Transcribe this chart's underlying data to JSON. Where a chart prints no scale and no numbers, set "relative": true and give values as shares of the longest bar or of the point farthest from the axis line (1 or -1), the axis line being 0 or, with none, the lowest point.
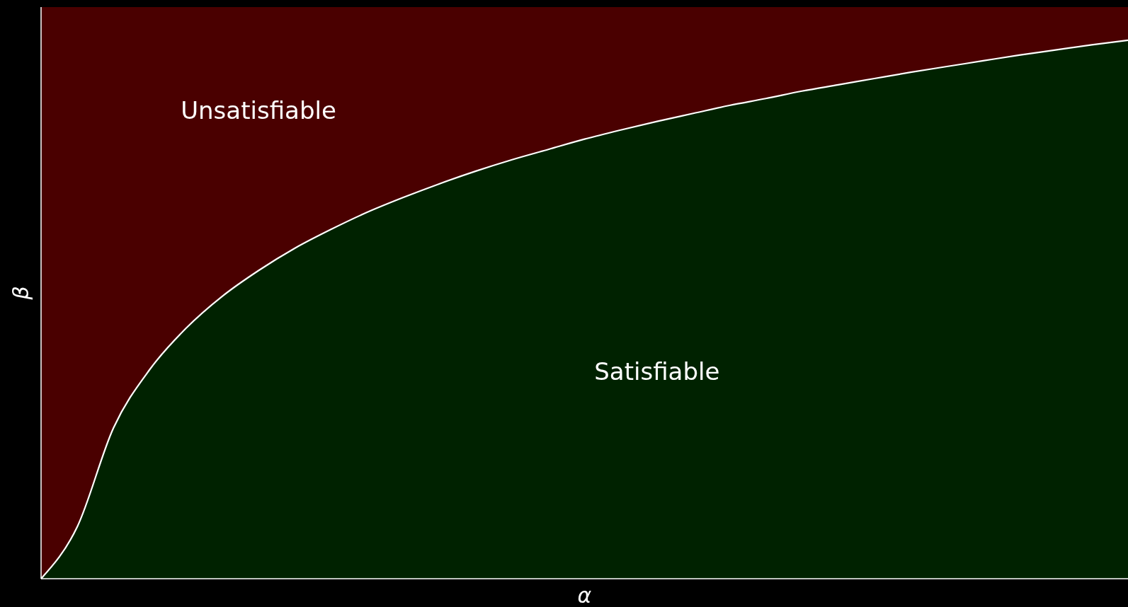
{
  "chart_data": {
    "type": "area",
    "xlabel": "α",
    "ylabel": "β",
    "relative": true,
    "stacked": true,
    "legend": false,
    "categories": [
      null,
      null,
      null,
      null,
      null,
      null,
      null,
      null,
      null,
      null,
      null,
      null,
      null,
      null,
      null,
      null,
      null,
      null,
      null,
      null,
      null,
      null,
      null,
      null,
      null,
      null,
      null,
      null,
      null,
      null,
      null
    ],
    "series": [
      {
        "name": "Satisfiable",
        "color": "#002200",
        "values": [
          0,
          0.091,
          0.264,
          0.366,
          0.438,
          0.494,
          0.539,
          0.578,
          0.611,
          0.641,
          0.667,
          0.691,
          0.713,
          0.733,
          0.751,
          0.769,
          0.785,
          0.8,
          0.814,
          0.828,
          0.84,
          0.853,
          0.864,
          0.875,
          0.886,
          0.896,
          0.906,
          0.916,
          0.925,
          0.934,
          0.942
        ]
      },
      {
        "name": "Unsatisfiable",
        "color": "#4a0000",
        "values": [
          1,
          0.909,
          0.736,
          0.634,
          0.562,
          0.506,
          0.461,
          0.422,
          0.389,
          0.359,
          0.333,
          0.309,
          0.287,
          0.267,
          0.249,
          0.231,
          0.215,
          0.2,
          0.186,
          0.172,
          0.16,
          0.147,
          0.136,
          0.125,
          0.114,
          0.104,
          0.094,
          0.084,
          0.075,
          0.066,
          0.058
        ]
      }
    ]
  }
}
